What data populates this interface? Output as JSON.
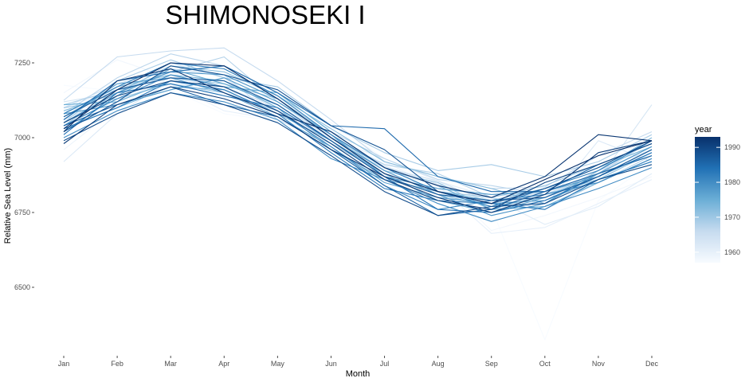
{
  "chart_data": {
    "type": "line",
    "title": "SHIMONOSEKI I",
    "xlabel": "Month",
    "ylabel": "Relative Sea Level (mm)",
    "categories": [
      "Jan",
      "Feb",
      "Mar",
      "Apr",
      "May",
      "Jun",
      "Jul",
      "Aug",
      "Sep",
      "Oct",
      "Nov",
      "Dec"
    ],
    "y_ticks": [
      6500,
      6750,
      7000,
      7250
    ],
    "ylim": [
      6310,
      7340
    ],
    "grid": false,
    "legend": {
      "title": "year",
      "placement": "right",
      "range": [
        1957,
        1993
      ],
      "ticks": [
        1960,
        1970,
        1980,
        1990
      ],
      "colors": [
        "#f7fbff",
        "#c6dbef",
        "#6baed6",
        "#2171b5",
        "#08306b"
      ]
    },
    "series": [
      {
        "year": 1957,
        "values": [
          7175,
          7155,
          7160,
          7080,
          7055,
          7005,
          6915,
          6850,
          6765,
          6325,
          6790,
          6915
        ]
      },
      {
        "year": 1958,
        "values": [
          7150,
          7260,
          7200,
          7150,
          7100,
          7050,
          6930,
          6860,
          6690,
          6740,
          6800,
          6870
        ]
      },
      {
        "year": 1959,
        "values": [
          6960,
          7100,
          7220,
          7150,
          7080,
          7030,
          6920,
          6830,
          6760,
          6790,
          6860,
          6960
        ]
      },
      {
        "year": 1960,
        "values": [
          7100,
          7160,
          7180,
          7090,
          7060,
          7010,
          6905,
          6840,
          6680,
          6700,
          6780,
          6860
        ]
      },
      {
        "year": 1961,
        "values": [
          7090,
          7120,
          7200,
          7170,
          7100,
          6995,
          6930,
          6855,
          6800,
          6710,
          6770,
          6880
        ]
      },
      {
        "year": 1962,
        "values": [
          6920,
          7080,
          7190,
          7140,
          7090,
          7010,
          6890,
          6840,
          6760,
          6770,
          6990,
          6920
        ]
      },
      {
        "year": 1963,
        "values": [
          7120,
          7150,
          7210,
          7160,
          7110,
          7000,
          6905,
          6845,
          6790,
          6830,
          6860,
          7110
        ]
      },
      {
        "year": 1964,
        "values": [
          7060,
          7140,
          7250,
          7200,
          7090,
          6990,
          6880,
          6830,
          6810,
          6800,
          6890,
          6960
        ]
      },
      {
        "year": 1965,
        "values": [
          7100,
          7180,
          7230,
          7210,
          7060,
          6980,
          6900,
          6855,
          6780,
          6820,
          6880,
          7000
        ]
      },
      {
        "year": 1966,
        "values": [
          7125,
          7270,
          7290,
          7300,
          7190,
          7060,
          6920,
          6870,
          6830,
          6835,
          6940,
          7020
        ]
      },
      {
        "year": 1967,
        "values": [
          7080,
          7200,
          7280,
          7240,
          7150,
          7020,
          6930,
          6860,
          6840,
          6810,
          6880,
          6990
        ]
      },
      {
        "year": 1968,
        "values": [
          7110,
          7160,
          7220,
          7270,
          7120,
          7000,
          6910,
          6880,
          6800,
          6760,
          6850,
          6940
        ]
      },
      {
        "year": 1969,
        "values": [
          7050,
          7190,
          7260,
          7200,
          7170,
          7040,
          6950,
          6890,
          6910,
          6870,
          6920,
          7010
        ]
      },
      {
        "year": 1970,
        "values": [
          7100,
          7130,
          7180,
          7150,
          7090,
          6980,
          6880,
          6820,
          6800,
          6840,
          6910,
          6980
        ]
      },
      {
        "year": 1971,
        "values": [
          7040,
          7160,
          7200,
          7180,
          7130,
          7010,
          6890,
          6850,
          6760,
          6810,
          6860,
          6950
        ]
      },
      {
        "year": 1972,
        "values": [
          7090,
          7150,
          7240,
          7220,
          7140,
          7030,
          6920,
          6870,
          6830,
          6780,
          6890,
          7000
        ]
      },
      {
        "year": 1973,
        "values": [
          7030,
          7100,
          7170,
          7160,
          7080,
          6990,
          6870,
          6810,
          6770,
          6800,
          6870,
          6950
        ]
      },
      {
        "year": 1974,
        "values": [
          7070,
          7170,
          7210,
          7190,
          7100,
          6960,
          6860,
          6820,
          6790,
          6830,
          6900,
          6970
        ]
      },
      {
        "year": 1975,
        "values": [
          7110,
          7120,
          7190,
          7170,
          7150,
          7020,
          6900,
          6840,
          6760,
          6770,
          6850,
          6930
        ]
      },
      {
        "year": 1976,
        "values": [
          7020,
          7140,
          7230,
          7180,
          7110,
          6990,
          6880,
          6790,
          6750,
          6800,
          6880,
          6940
        ]
      },
      {
        "year": 1977,
        "values": [
          7060,
          7180,
          7200,
          7150,
          7070,
          6970,
          6850,
          6800,
          6780,
          6790,
          6860,
          6920
        ]
      },
      {
        "year": 1978,
        "values": [
          7080,
          7110,
          7160,
          7200,
          7120,
          7010,
          6870,
          6830,
          6810,
          6820,
          6870,
          6960
        ]
      },
      {
        "year": 1979,
        "values": [
          7050,
          7150,
          7220,
          7210,
          7130,
          7000,
          6890,
          6810,
          6740,
          6780,
          6880,
          6970
        ]
      },
      {
        "year": 1980,
        "values": [
          7000,
          7090,
          7150,
          7120,
          7060,
          6930,
          6860,
          6780,
          6720,
          6770,
          6830,
          6900
        ]
      },
      {
        "year": 1981,
        "values": [
          7040,
          7130,
          7210,
          7170,
          7090,
          6970,
          6840,
          6760,
          6790,
          6810,
          6850,
          6930
        ]
      },
      {
        "year": 1982,
        "values": [
          7080,
          7170,
          7250,
          7230,
          7140,
          7010,
          6900,
          6820,
          6770,
          6830,
          6890,
          6990
        ]
      },
      {
        "year": 1983,
        "values": [
          7030,
          7100,
          7190,
          7160,
          7080,
          6950,
          6830,
          6790,
          6780,
          6760,
          6860,
          6920
        ]
      },
      {
        "year": 1984,
        "values": [
          7010,
          7150,
          7180,
          7140,
          7100,
          6990,
          6870,
          6760,
          6750,
          6790,
          6870,
          6950
        ]
      },
      {
        "year": 1985,
        "values": [
          7060,
          7190,
          7220,
          7240,
          7150,
          7040,
          7030,
          6870,
          6820,
          6820,
          6910,
          6980
        ]
      },
      {
        "year": 1986,
        "values": [
          7040,
          7110,
          7170,
          7110,
          7070,
          6960,
          6840,
          6740,
          6760,
          6820,
          6880,
          6940
        ]
      },
      {
        "year": 1987,
        "values": [
          7070,
          7160,
          7200,
          7190,
          7110,
          6990,
          6870,
          6810,
          6790,
          6800,
          6870,
          6960
        ]
      },
      {
        "year": 1988,
        "values": [
          7020,
          7120,
          7240,
          7210,
          7160,
          7040,
          6960,
          6820,
          6780,
          6830,
          6900,
          6990
        ]
      },
      {
        "year": 1989,
        "values": [
          6990,
          7080,
          7150,
          7110,
          7050,
          6940,
          6820,
          6740,
          6770,
          6780,
          6860,
          6910
        ]
      },
      {
        "year": 1990,
        "values": [
          7050,
          7140,
          7190,
          7170,
          7090,
          6980,
          6860,
          6790,
          6760,
          6850,
          6910,
          6980
        ]
      },
      {
        "year": 1991,
        "values": [
          6980,
          7110,
          7170,
          7130,
          7070,
          6960,
          6870,
          6800,
          6750,
          6810,
          6950,
          6990
        ]
      },
      {
        "year": 1992,
        "values": [
          7020,
          7190,
          7230,
          7150,
          7080,
          7020,
          6900,
          6840,
          6800,
          6870,
          7010,
          6990
        ]
      },
      {
        "year": 1993,
        "values": [
          7030,
          7160,
          7250,
          7240,
          7130,
          7000,
          6880,
          6820,
          6780,
          6860,
          6940,
          6990
        ]
      }
    ]
  }
}
